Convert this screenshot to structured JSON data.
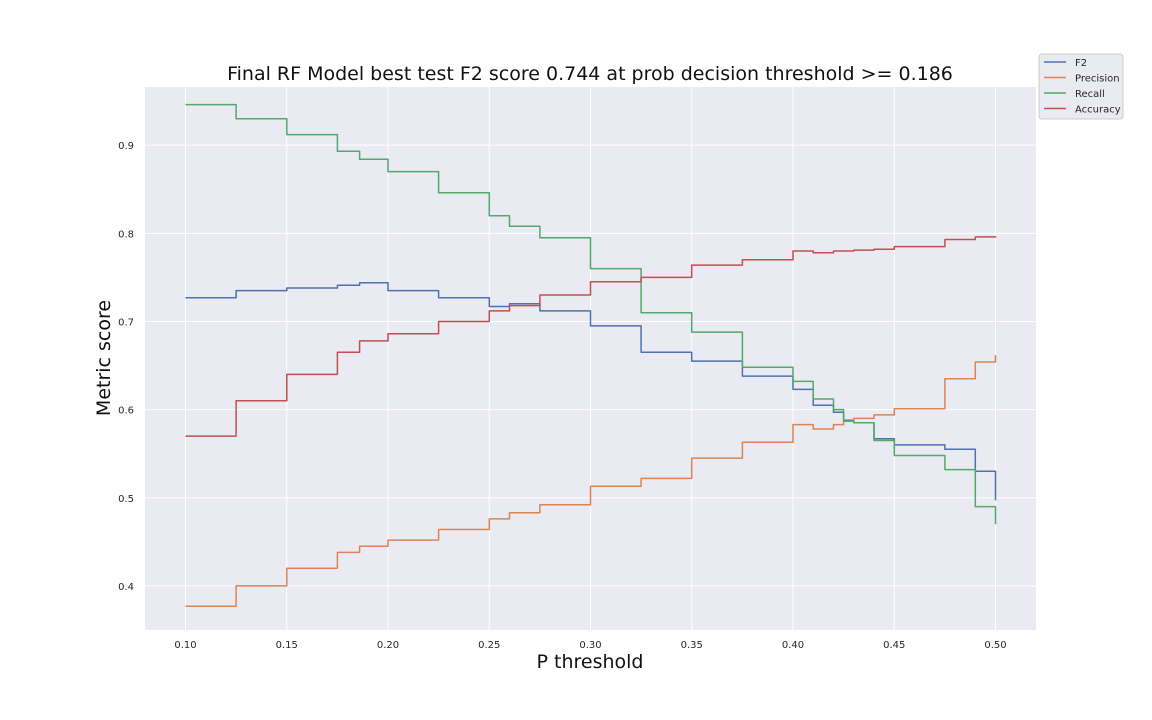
{
  "chart_data": {
    "type": "line",
    "title": "Final RF Model best test F2 score 0.744 at prob decision threshold >= 0.186",
    "xlabel": "P threshold",
    "ylabel": "Metric score",
    "xlim": [
      0.08,
      0.52
    ],
    "ylim": [
      0.35,
      0.966
    ],
    "x_ticks": [
      0.1,
      0.15,
      0.2,
      0.25,
      0.3,
      0.35,
      0.4,
      0.45,
      0.5
    ],
    "x_tick_labels": [
      "0.10",
      "0.15",
      "0.20",
      "0.25",
      "0.30",
      "0.35",
      "0.40",
      "0.45",
      "0.50"
    ],
    "y_ticks": [
      0.4,
      0.5,
      0.6,
      0.7,
      0.8,
      0.9
    ],
    "y_tick_labels": [
      "0.4",
      "0.5",
      "0.6",
      "0.7",
      "0.8",
      "0.9"
    ],
    "grid": true,
    "legend_position": "outside-top-right",
    "x": [
      0.1,
      0.125,
      0.15,
      0.175,
      0.186,
      0.2,
      0.225,
      0.25,
      0.26,
      0.275,
      0.3,
      0.325,
      0.35,
      0.375,
      0.4,
      0.41,
      0.42,
      0.425,
      0.43,
      0.44,
      0.45,
      0.475,
      0.49,
      0.5
    ],
    "series": [
      {
        "name": "F2",
        "color": "#4c72b0",
        "values": [
          0.727,
          0.735,
          0.738,
          0.741,
          0.744,
          0.735,
          0.727,
          0.717,
          0.72,
          0.712,
          0.695,
          0.665,
          0.655,
          0.638,
          0.623,
          0.605,
          0.597,
          0.588,
          0.585,
          0.567,
          0.56,
          0.555,
          0.53,
          0.497
        ]
      },
      {
        "name": "Precision",
        "color": "#dd8452",
        "values": [
          0.377,
          0.4,
          0.42,
          0.438,
          0.445,
          0.452,
          0.464,
          0.476,
          0.483,
          0.492,
          0.513,
          0.522,
          0.545,
          0.563,
          0.583,
          0.578,
          0.583,
          0.587,
          0.59,
          0.594,
          0.601,
          0.635,
          0.654,
          0.662
        ]
      },
      {
        "name": "Recall",
        "color": "#55a868",
        "values": [
          0.946,
          0.93,
          0.912,
          0.893,
          0.884,
          0.87,
          0.846,
          0.82,
          0.808,
          0.795,
          0.76,
          0.71,
          0.688,
          0.648,
          0.632,
          0.612,
          0.6,
          0.587,
          0.585,
          0.565,
          0.548,
          0.532,
          0.49,
          0.47
        ]
      },
      {
        "name": "Accuracy",
        "color": "#c44e52",
        "values": [
          0.57,
          0.61,
          0.64,
          0.665,
          0.678,
          0.686,
          0.7,
          0.712,
          0.718,
          0.73,
          0.745,
          0.75,
          0.764,
          0.77,
          0.78,
          0.778,
          0.78,
          0.78,
          0.781,
          0.782,
          0.785,
          0.793,
          0.796,
          0.795
        ]
      }
    ]
  }
}
